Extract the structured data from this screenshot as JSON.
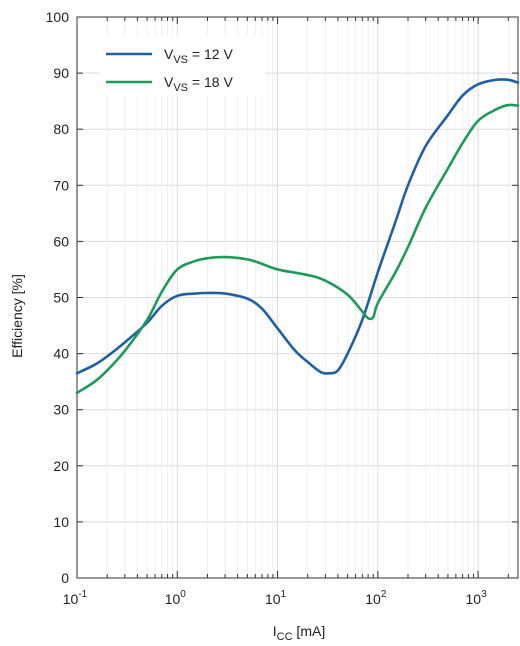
{
  "chart_data": {
    "type": "line",
    "title": "",
    "xlabel": {
      "main": "I",
      "sub": "CC",
      "unit": " [mA]"
    },
    "ylabel": "Efficiency [%]",
    "x_scale": "log",
    "xlim": [
      0.1,
      2500
    ],
    "ylim": [
      0,
      100
    ],
    "grid": true,
    "legend_position": "top-left",
    "y_ticks": [
      0,
      10,
      20,
      30,
      40,
      50,
      60,
      70,
      80,
      90,
      100
    ],
    "y_tick_labels": [
      "0",
      "10",
      "20",
      "30",
      "40",
      "50",
      "60",
      "70",
      "80",
      "90",
      "100"
    ],
    "x_ticks": [
      0.1,
      1,
      10,
      100,
      1000
    ],
    "x_tick_labels": [
      {
        "base": "10",
        "exp": "-1"
      },
      {
        "base": "10",
        "exp": "0"
      },
      {
        "base": "10",
        "exp": "1"
      },
      {
        "base": "10",
        "exp": "2"
      },
      {
        "base": "10",
        "exp": "3"
      }
    ],
    "series": [
      {
        "name": "V_VS = 12 V",
        "legend": {
          "main": "V",
          "sub": "VS",
          "rest": " = 12 V"
        },
        "color": "#1f5fa6",
        "points": [
          [
            0.1,
            36.5
          ],
          [
            0.15,
            38.0
          ],
          [
            0.2,
            39.5
          ],
          [
            0.3,
            42.0
          ],
          [
            0.5,
            45.5
          ],
          [
            0.7,
            48.5
          ],
          [
            1.0,
            50.3
          ],
          [
            1.5,
            50.7
          ],
          [
            2,
            50.8
          ],
          [
            3,
            50.7
          ],
          [
            5,
            49.8
          ],
          [
            7,
            48.0
          ],
          [
            10,
            44.5
          ],
          [
            15,
            40.5
          ],
          [
            20,
            38.5
          ],
          [
            27,
            36.7
          ],
          [
            33,
            36.5
          ],
          [
            40,
            37.0
          ],
          [
            50,
            40.0
          ],
          [
            70,
            46.0
          ],
          [
            100,
            54.5
          ],
          [
            150,
            63.5
          ],
          [
            200,
            70.0
          ],
          [
            300,
            77.0
          ],
          [
            500,
            82.5
          ],
          [
            700,
            86.0
          ],
          [
            1000,
            88.0
          ],
          [
            1500,
            88.8
          ],
          [
            2000,
            88.8
          ],
          [
            2500,
            88.3
          ]
        ]
      },
      {
        "name": "V_VS = 18 V",
        "legend": {
          "main": "V",
          "sub": "VS",
          "rest": " = 18 V"
        },
        "color": "#1f9a5a",
        "points": [
          [
            0.1,
            33.0
          ],
          [
            0.15,
            35.0
          ],
          [
            0.2,
            37.0
          ],
          [
            0.3,
            40.5
          ],
          [
            0.5,
            46.0
          ],
          [
            0.7,
            51.0
          ],
          [
            1.0,
            55.0
          ],
          [
            1.5,
            56.5
          ],
          [
            2,
            57.0
          ],
          [
            3,
            57.2
          ],
          [
            5,
            56.8
          ],
          [
            7,
            56.0
          ],
          [
            10,
            55.0
          ],
          [
            20,
            54.0
          ],
          [
            30,
            53.0
          ],
          [
            50,
            50.5
          ],
          [
            70,
            47.5
          ],
          [
            80,
            46.3
          ],
          [
            90,
            46.5
          ],
          [
            100,
            49.0
          ],
          [
            150,
            54.5
          ],
          [
            200,
            59.0
          ],
          [
            300,
            66.0
          ],
          [
            500,
            73.0
          ],
          [
            700,
            77.5
          ],
          [
            1000,
            81.5
          ],
          [
            1500,
            83.5
          ],
          [
            2000,
            84.3
          ],
          [
            2500,
            84.2
          ]
        ]
      }
    ]
  }
}
